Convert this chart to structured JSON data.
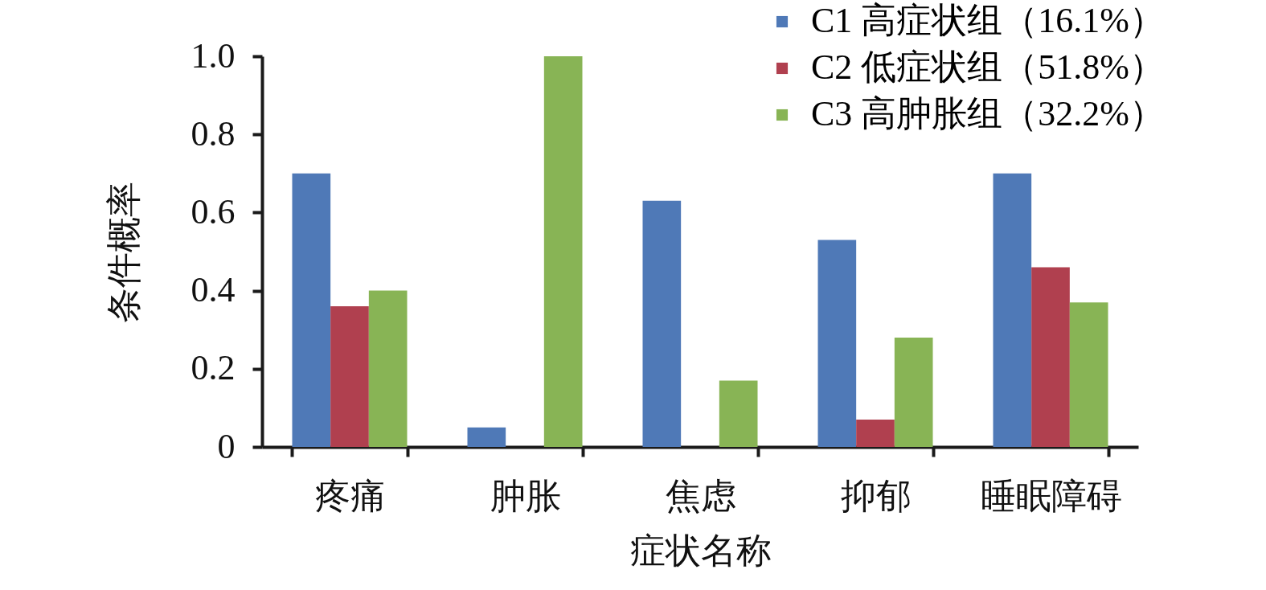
{
  "chart_data": {
    "type": "bar",
    "xlabel": "症状名称",
    "ylabel": "条件概率",
    "categories": [
      "疼痛",
      "肿胀",
      "焦虑",
      "抑郁",
      "睡眠障碍"
    ],
    "series": [
      {
        "name": "C1 高症状组（16.1%）",
        "color": "#4f79b7",
        "values": [
          0.7,
          0.05,
          0.63,
          0.53,
          0.7
        ]
      },
      {
        "name": "C2 低症状组（51.8%）",
        "color": "#b0404f",
        "values": [
          0.36,
          null,
          null,
          0.07,
          0.46
        ]
      },
      {
        "name": "C3 高肿胀组（32.2%）",
        "color": "#88b455",
        "values": [
          0.4,
          1.0,
          0.17,
          0.28,
          0.37
        ]
      }
    ],
    "ylim": [
      0,
      1
    ],
    "yticks": [
      0,
      0.2,
      0.4,
      0.6,
      0.8,
      {
        "value": 1,
        "label": "1.0"
      }
    ],
    "grid": false,
    "legend": "top right"
  }
}
